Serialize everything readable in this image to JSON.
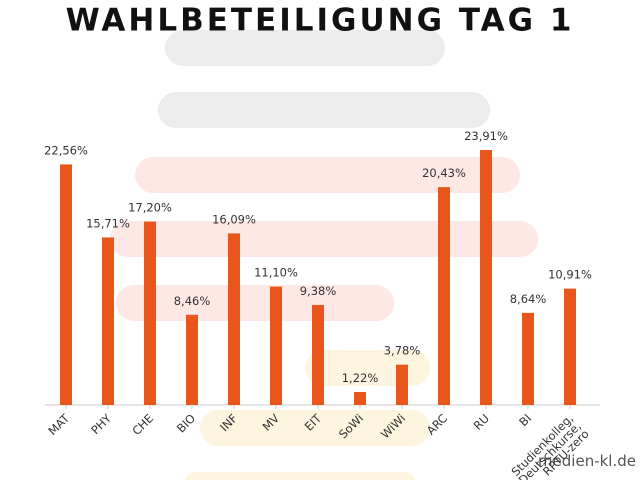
{
  "chart_data": {
    "type": "bar",
    "title": "WAHLBETEILIGUNG TAG 1",
    "categories": [
      "MAT",
      "PHY",
      "CHE",
      "BIO",
      "INF",
      "MV",
      "EIT",
      "SoWi",
      "WiWi",
      "ARC",
      "RU",
      "BI",
      "Studienkolleg, Deutschkurse, RPTU-zero"
    ],
    "values": [
      22.56,
      15.71,
      17.2,
      8.46,
      16.09,
      11.1,
      9.38,
      1.22,
      3.78,
      20.43,
      23.91,
      8.64,
      10.91
    ],
    "value_labels": [
      "22,56%",
      "15,71%",
      "17,20%",
      "8,46%",
      "16,09%",
      "11,10%",
      "9,38%",
      "1,22%",
      "3,78%",
      "20,43%",
      "23,91%",
      "8,64%",
      "10,91%"
    ],
    "color": "#e8561c",
    "watermark": "medien-kl.de"
  }
}
